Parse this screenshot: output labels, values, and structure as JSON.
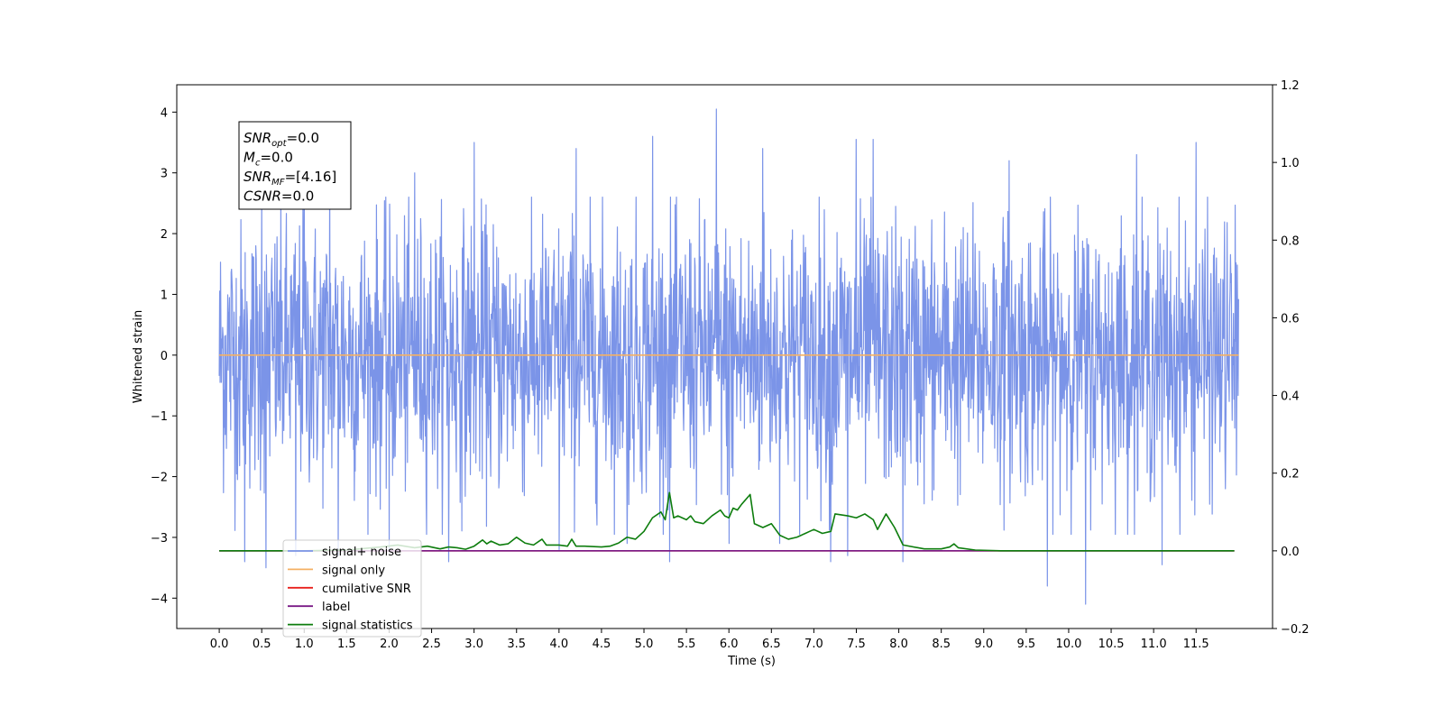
{
  "chart_data": {
    "type": "line",
    "xlabel": "Time (s)",
    "ylabel": "Whitened strain",
    "xlim": [
      -0.5,
      12.4
    ],
    "ylim_left": [
      -4.5,
      4.45
    ],
    "ylim_right": [
      -0.2,
      1.2
    ],
    "x_ticks": [
      0.0,
      0.5,
      1.0,
      1.5,
      2.0,
      2.5,
      3.0,
      3.5,
      4.0,
      4.5,
      5.0,
      5.5,
      6.0,
      6.5,
      7.0,
      7.5,
      8.0,
      8.5,
      9.0,
      9.5,
      10.0,
      10.5,
      11.0,
      11.5
    ],
    "x_tick_labels": [
      "0.0",
      "0.5",
      "1.0",
      "1.5",
      "2.0",
      "2.5",
      "3.0",
      "3.5",
      "4.0",
      "4.5",
      "5.0",
      "5.5",
      "6.0",
      "6.5",
      "7.0",
      "7.5",
      "8.0",
      "8.5",
      "9.0",
      "9.5",
      "10.0",
      "10.5",
      "11.0",
      "11.5"
    ],
    "y_left_ticks": [
      -4,
      -3,
      -2,
      -1,
      0,
      1,
      2,
      3,
      4
    ],
    "y_left_tick_labels": [
      "−4",
      "−3",
      "−2",
      "−1",
      "0",
      "1",
      "2",
      "3",
      "4"
    ],
    "y_right_ticks": [
      -0.2,
      0.0,
      0.2,
      0.4,
      0.6,
      0.8,
      1.0,
      1.2
    ],
    "y_right_tick_labels": [
      "−0.2",
      "0.0",
      "0.2",
      "0.4",
      "0.6",
      "0.8",
      "1.0",
      "1.2"
    ],
    "grid": false,
    "legend_position": "lower-left",
    "info_box": {
      "snr_opt": {
        "base": "SNR",
        "sub": "opt",
        "value": "=0.0"
      },
      "mc": {
        "base": "M",
        "sub": "c",
        "value": "=0.0"
      },
      "snr_mf": {
        "base": "SNR",
        "sub": "MF",
        "value": "=[4.16]"
      },
      "csnr": {
        "base": "CSNR",
        "sub": "",
        "value": "=0.0"
      }
    },
    "series": [
      {
        "name": "signal+ noise",
        "color": "#7b94e8",
        "axis": "left",
        "x_range": [
          0.0,
          12.0
        ],
        "num_samples": 2400,
        "amplitude": 1.1,
        "upper_peaks": [
          [
            0.5,
            2.7
          ],
          [
            1.0,
            2.8
          ],
          [
            1.3,
            2.95
          ],
          [
            2.3,
            3.0
          ],
          [
            3.0,
            3.5
          ],
          [
            4.2,
            3.4
          ],
          [
            5.1,
            3.6
          ],
          [
            5.85,
            4.05
          ],
          [
            6.4,
            3.4
          ],
          [
            7.5,
            3.55
          ],
          [
            7.7,
            3.55
          ],
          [
            9.3,
            3.2
          ],
          [
            10.8,
            3.3
          ],
          [
            11.5,
            3.5
          ]
        ],
        "lower_peaks": [
          [
            0.3,
            -3.4
          ],
          [
            0.55,
            -3.5
          ],
          [
            0.9,
            -3.3
          ],
          [
            1.4,
            -3.3
          ],
          [
            2.0,
            -3.2
          ],
          [
            2.7,
            -3.4
          ],
          [
            4.0,
            -3.2
          ],
          [
            4.8,
            -3.1
          ],
          [
            5.3,
            -3.4
          ],
          [
            6.0,
            -3.1
          ],
          [
            6.6,
            -3.1
          ],
          [
            7.2,
            -3.4
          ],
          [
            7.4,
            -3.3
          ],
          [
            8.05,
            -3.4
          ],
          [
            9.75,
            -3.8
          ],
          [
            10.2,
            -4.1
          ],
          [
            11.1,
            -3.45
          ]
        ]
      },
      {
        "name": "signal only",
        "color": "#f4b064",
        "axis": "left",
        "x": [
          0.0,
          12.0
        ],
        "y": [
          0.0,
          0.0
        ]
      },
      {
        "name": "cumilative SNR",
        "color": "#e8201c",
        "axis": "right",
        "x": [
          0.0,
          11.95
        ],
        "y": [
          0.0,
          0.0
        ]
      },
      {
        "name": "label",
        "color": "#7a1a86",
        "axis": "right",
        "x": [
          0.0,
          11.95
        ],
        "y": [
          0.0,
          0.0
        ]
      },
      {
        "name": "signal statistics",
        "color": "#0d7d0d",
        "axis": "right",
        "x": [
          0.0,
          0.5,
          1.0,
          1.5,
          1.9,
          2.1,
          2.3,
          2.45,
          2.6,
          2.7,
          2.8,
          2.9,
          3.0,
          3.1,
          3.15,
          3.2,
          3.3,
          3.4,
          3.5,
          3.6,
          3.7,
          3.8,
          3.85,
          4.0,
          4.1,
          4.15,
          4.2,
          4.3,
          4.5,
          4.6,
          4.7,
          4.8,
          4.9,
          5.0,
          5.1,
          5.2,
          5.25,
          5.3,
          5.35,
          5.4,
          5.5,
          5.55,
          5.6,
          5.7,
          5.8,
          5.9,
          5.95,
          6.0,
          6.05,
          6.1,
          6.15,
          6.25,
          6.3,
          6.4,
          6.5,
          6.6,
          6.7,
          6.8,
          6.9,
          6.95,
          7.0,
          7.1,
          7.2,
          7.25,
          7.4,
          7.5,
          7.6,
          7.7,
          7.75,
          7.85,
          7.95,
          8.05,
          8.3,
          8.4,
          8.5,
          8.6,
          8.65,
          8.7,
          8.9,
          9.2,
          11.95
        ],
        "y": [
          0.0,
          0.0,
          0.0,
          0.002,
          0.01,
          0.015,
          0.008,
          0.012,
          0.005,
          0.01,
          0.008,
          0.004,
          0.012,
          0.028,
          0.018,
          0.025,
          0.015,
          0.018,
          0.035,
          0.02,
          0.015,
          0.03,
          0.015,
          0.015,
          0.012,
          0.03,
          0.012,
          0.012,
          0.01,
          0.012,
          0.02,
          0.035,
          0.03,
          0.05,
          0.085,
          0.1,
          0.08,
          0.15,
          0.085,
          0.09,
          0.08,
          0.09,
          0.075,
          0.07,
          0.09,
          0.105,
          0.09,
          0.085,
          0.11,
          0.105,
          0.12,
          0.145,
          0.07,
          0.06,
          0.07,
          0.04,
          0.03,
          0.035,
          0.045,
          0.05,
          0.055,
          0.045,
          0.05,
          0.095,
          0.09,
          0.085,
          0.095,
          0.08,
          0.055,
          0.095,
          0.06,
          0.015,
          0.005,
          0.005,
          0.005,
          0.01,
          0.018,
          0.008,
          0.002,
          0.0,
          0.0
        ]
      }
    ]
  }
}
